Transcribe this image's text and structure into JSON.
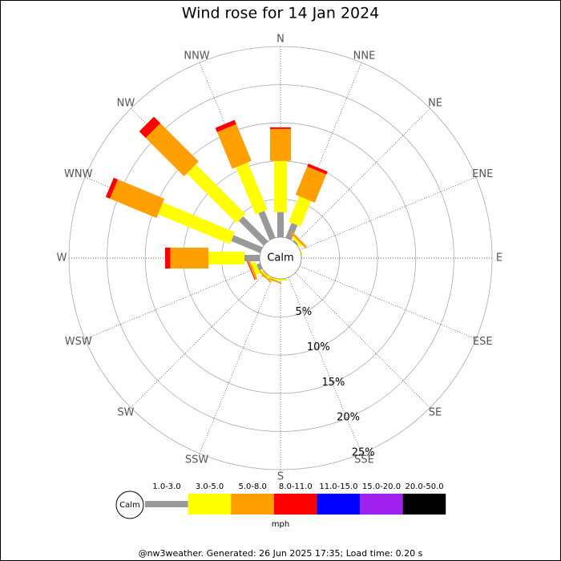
{
  "chart_data": {
    "type": "windrose",
    "title": "Wind rose for 14 Jan 2024",
    "directions": [
      "N",
      "NNE",
      "NE",
      "ENE",
      "E",
      "ESE",
      "SE",
      "SSE",
      "S",
      "SSW",
      "SW",
      "WSW",
      "W",
      "WNW",
      "NW",
      "NNW"
    ],
    "calm_label": "Calm",
    "rlim": [
      0,
      25
    ],
    "rticks": [
      {
        "value": 5,
        "label": "5%"
      },
      {
        "value": 10,
        "label": "10%"
      },
      {
        "value": 15,
        "label": "15%"
      },
      {
        "value": 20,
        "label": "20%"
      },
      {
        "value": 25,
        "label": "25%"
      }
    ],
    "series": [
      {
        "name": "1.0-3.0",
        "color": "#999999",
        "values": [
          3.3,
          2.1,
          0.2,
          0,
          0,
          0,
          0,
          0,
          0,
          0,
          0.1,
          0.5,
          2.0,
          4.1,
          4.6,
          3.8
        ]
      },
      {
        "name": "3.0-5.0",
        "color": "#ffff00",
        "values": [
          6.7,
          3.6,
          0.3,
          0.1,
          0,
          0,
          0,
          0,
          0.2,
          0.2,
          0.2,
          0.6,
          4.7,
          10.2,
          9.2,
          6.7
        ]
      },
      {
        "name": "5.0-8.0",
        "color": "#ff9f00",
        "values": [
          4.2,
          4.0,
          0.3,
          0,
          0,
          0,
          0,
          0,
          0,
          0.2,
          0.2,
          0.3,
          5.0,
          6.6,
          7.1,
          5.2
        ]
      },
      {
        "name": "8.0-11.0",
        "color": "#ff0000",
        "values": [
          0.2,
          0.4,
          0,
          0,
          0,
          0,
          0,
          0,
          0,
          0,
          0,
          0.1,
          0.7,
          0.6,
          1.2,
          0.6
        ]
      },
      {
        "name": "11.0-15.0",
        "color": "#0000ff",
        "values": [
          0,
          0,
          0,
          0,
          0,
          0,
          0,
          0,
          0,
          0,
          0,
          0,
          0,
          0,
          0,
          0
        ]
      },
      {
        "name": "15.0-20.0",
        "color": "#a020f0",
        "values": [
          0,
          0,
          0,
          0,
          0,
          0,
          0,
          0,
          0,
          0,
          0,
          0,
          0,
          0,
          0,
          0
        ]
      },
      {
        "name": "20.0-50.0",
        "color": "#000000",
        "values": [
          0,
          0,
          0,
          0,
          0,
          0,
          0,
          0,
          0,
          0,
          0,
          0,
          0,
          0,
          0,
          0
        ]
      }
    ],
    "legend_unit": "mph",
    "footer": "@nw3weather. Generated: 26 Jun 2025 17:35; Load time: 0.20 s"
  }
}
